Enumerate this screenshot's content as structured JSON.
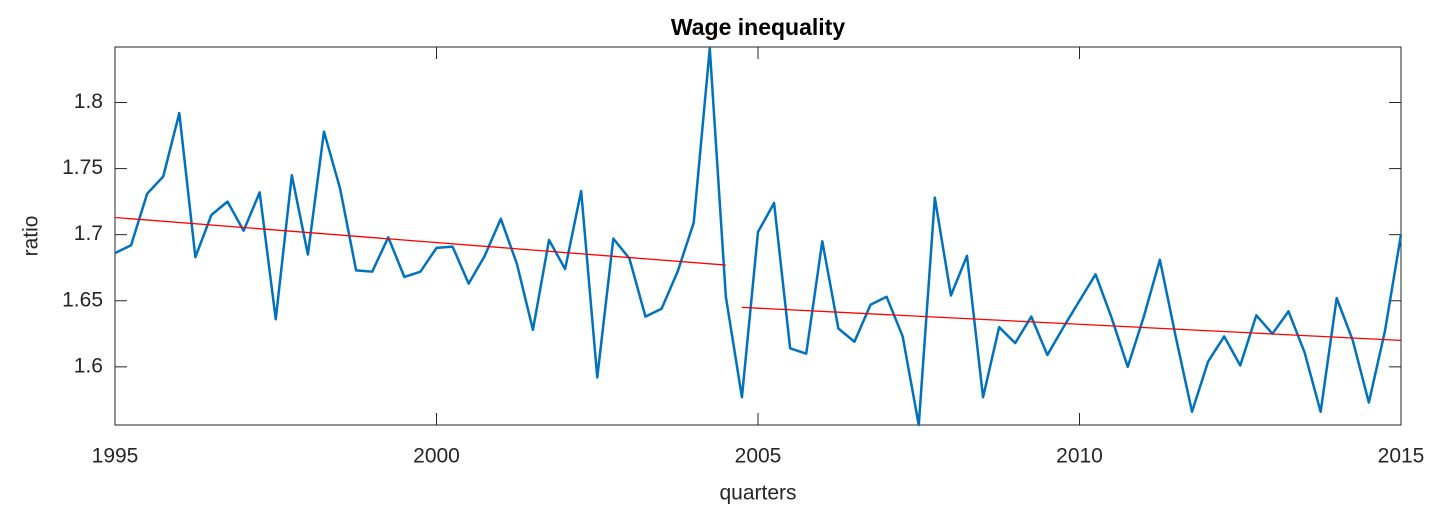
{
  "chart_data": {
    "type": "line",
    "title": "Wage inequality",
    "x_label": "quarters",
    "y_label": "ratio",
    "xlim": [
      1995,
      2015
    ],
    "ylim": [
      1.556,
      1.842
    ],
    "xticks": [
      1995,
      2000,
      2005,
      2010,
      2015
    ],
    "yticks": [
      1.6,
      1.65,
      1.7,
      1.75,
      1.8
    ],
    "series": [
      {
        "color": "#0072bd",
        "x": [
          1995,
          1995.25,
          1995.5,
          1995.75,
          1996,
          1996.25,
          1996.5,
          1996.75,
          1997,
          1997.25,
          1997.5,
          1997.75,
          1998,
          1998.25,
          1998.5,
          1998.75,
          1999,
          1999.25,
          1999.5,
          1999.75,
          2000,
          2000.25,
          2000.5,
          2000.75,
          2001,
          2001.25,
          2001.5,
          2001.75,
          2002,
          2002.25,
          2002.5,
          2002.75,
          2003,
          2003.25,
          2003.5,
          2003.75,
          2004,
          2004.25,
          2004.5,
          2004.75,
          2005,
          2005.25,
          2005.5,
          2005.75,
          2006,
          2006.25,
          2006.5,
          2006.75,
          2007,
          2007.25,
          2007.5,
          2007.75,
          2008,
          2008.25,
          2008.5,
          2008.75,
          2009,
          2009.25,
          2009.5,
          2009.75,
          2010,
          2010.25,
          2010.5,
          2010.75,
          2011,
          2011.25,
          2011.5,
          2011.75,
          2012,
          2012.25,
          2012.5,
          2012.75,
          2013,
          2013.25,
          2013.5,
          2013.75,
          2014,
          2014.25,
          2014.5,
          2014.75,
          2015
        ],
        "values": [
          1.686,
          1.692,
          1.731,
          1.744,
          1.792,
          1.683,
          1.715,
          1.725,
          1.703,
          1.732,
          1.636,
          1.745,
          1.685,
          1.778,
          1.735,
          1.673,
          1.672,
          1.698,
          1.668,
          1.672,
          1.69,
          1.691,
          1.663,
          1.684,
          1.712,
          1.678,
          1.628,
          1.696,
          1.674,
          1.733,
          1.592,
          1.697,
          1.682,
          1.638,
          1.644,
          1.672,
          1.709,
          1.841,
          1.653,
          1.577,
          1.702,
          1.724,
          1.614,
          1.61,
          1.695,
          1.629,
          1.619,
          1.647,
          1.653,
          1.623,
          1.556,
          1.728,
          1.654,
          1.684,
          1.577,
          1.63,
          1.618,
          1.638,
          1.609,
          1.63,
          1.65,
          1.67,
          1.637,
          1.6,
          1.638,
          1.681,
          1.622,
          1.566,
          1.604,
          1.623,
          1.601,
          1.639,
          1.625,
          1.642,
          1.611,
          1.566,
          1.652,
          1.62,
          1.573,
          1.627,
          1.7
        ]
      },
      {
        "color": "#ff0000",
        "x": [
          1995,
          2004.5
        ],
        "values": [
          1.713,
          1.677
        ]
      },
      {
        "color": "#ff0000",
        "x": [
          2004.75,
          2015
        ],
        "values": [
          1.645,
          1.62
        ]
      }
    ]
  }
}
